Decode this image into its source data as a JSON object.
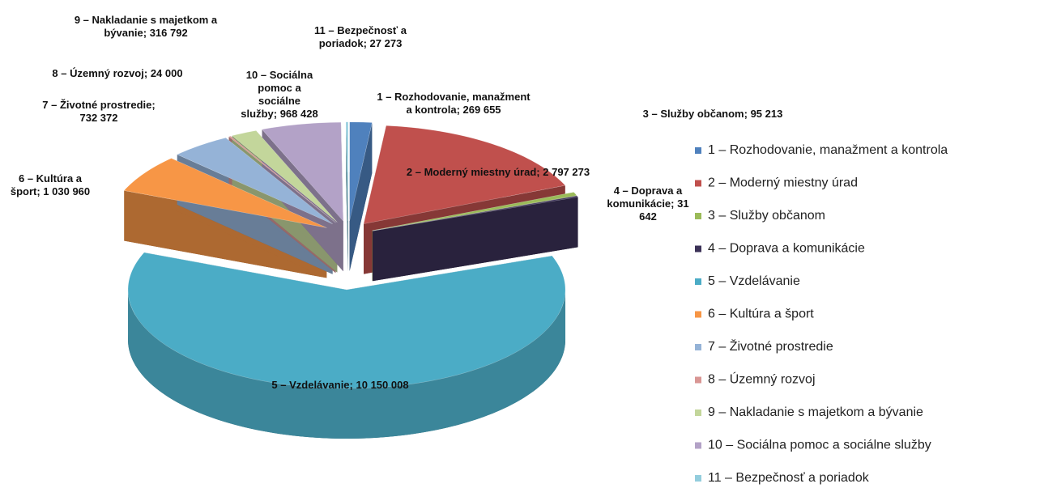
{
  "chart_data": {
    "type": "pie",
    "categories": [
      "1 – Rozhodovanie, manažment a kontrola",
      "2 – Moderný miestny úrad",
      "3 – Služby občanom",
      "4 – Doprava a komunikácie",
      "5 – Vzdelávanie",
      "6 – Kultúra a šport",
      "7 – Životné prostredie",
      "8 – Územný rozvoj",
      "9 – Nakladanie s majetkom a bývanie",
      "10 – Sociálna pomoc a sociálne služby",
      "11 – Bezpečnosť a poriadok"
    ],
    "values": [
      269655,
      2797273,
      95213,
      31642,
      10150008,
      1030960,
      732372,
      24000,
      316792,
      968428,
      27273
    ],
    "value_labels": [
      "269 655",
      "2 797 273",
      "95 213",
      "31 642",
      "10 150 008",
      "1 030 960",
      "732 372",
      "24 000",
      "316 792",
      "968 428",
      "27 273"
    ],
    "label_separator": "; ",
    "colors": [
      "#4f81bd",
      "#c0504d",
      "#9bbb59",
      "#3b3157",
      "#4bacc6",
      "#f79646",
      "#95b3d7",
      "#d99694",
      "#c3d69b",
      "#b3a2c7",
      "#93cddd"
    ],
    "legend": "right"
  }
}
